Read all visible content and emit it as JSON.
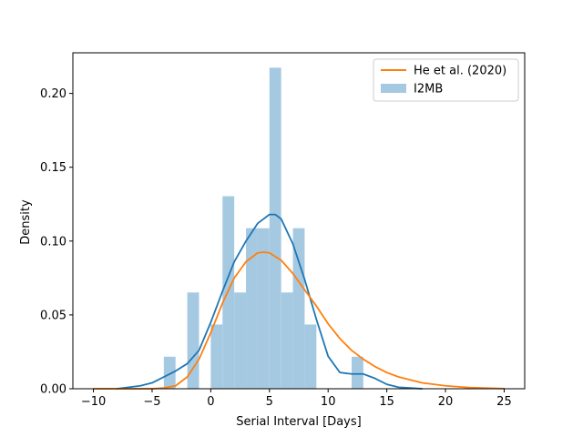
{
  "chart_data": {
    "type": "bar",
    "title": "",
    "xlabel": "Serial Interval [Days]",
    "ylabel": "Density",
    "xlim": [
      -11.75,
      26.75
    ],
    "ylim": [
      0,
      0.2275
    ],
    "grid": false,
    "legend_position": "top-right",
    "x_ticks": [
      -10,
      -5,
      0,
      5,
      10,
      15,
      20,
      25
    ],
    "x_tick_labels": [
      "−10",
      "−5",
      "0",
      "5",
      "10",
      "15",
      "20",
      "25"
    ],
    "y_ticks": [
      0,
      0.05,
      0.1,
      0.15,
      0.2
    ],
    "y_tick_labels": [
      "0.00",
      "0.05",
      "0.10",
      "0.15",
      "0.20"
    ],
    "histogram": {
      "name": "I2MB",
      "color": "#a6c9e2",
      "bins": [
        {
          "x0": -4.0,
          "x1": -3.0,
          "density": 0.0217
        },
        {
          "x0": -2.0,
          "x1": -1.0,
          "density": 0.0652
        },
        {
          "x0": 0.0,
          "x1": 1.0,
          "density": 0.0435
        },
        {
          "x0": 1.0,
          "x1": 2.0,
          "density": 0.1304
        },
        {
          "x0": 2.0,
          "x1": 3.0,
          "density": 0.0652
        },
        {
          "x0": 3.0,
          "x1": 4.0,
          "density": 0.1087
        },
        {
          "x0": 4.0,
          "x1": 5.0,
          "density": 0.1087
        },
        {
          "x0": 5.0,
          "x1": 6.0,
          "density": 0.2174
        },
        {
          "x0": 6.0,
          "x1": 7.0,
          "density": 0.0652
        },
        {
          "x0": 7.0,
          "x1": 8.0,
          "density": 0.1087
        },
        {
          "x0": 8.0,
          "x1": 9.0,
          "density": 0.0435
        },
        {
          "x0": 12.0,
          "x1": 13.0,
          "density": 0.0217
        }
      ]
    },
    "series": [
      {
        "name": "",
        "kind": "kde",
        "color": "#1f77b4",
        "x": [
          -8,
          -6,
          -5,
          -4,
          -3,
          -2,
          -1,
          0,
          1,
          2,
          3,
          4,
          5,
          5.5,
          6,
          7,
          8,
          9,
          10,
          11,
          12,
          13,
          14,
          15,
          16,
          17,
          18
        ],
        "y": [
          0.0,
          0.002,
          0.004,
          0.008,
          0.012,
          0.017,
          0.026,
          0.045,
          0.066,
          0.086,
          0.1,
          0.112,
          0.118,
          0.118,
          0.115,
          0.098,
          0.074,
          0.047,
          0.022,
          0.011,
          0.01,
          0.01,
          0.007,
          0.003,
          0.001,
          0.0005,
          0.0
        ]
      },
      {
        "name": "He et al. (2020)",
        "kind": "curve",
        "color": "#ff7f0e",
        "x": [
          -10,
          -8,
          -6,
          -5,
          -4,
          -3,
          -2,
          -1,
          0,
          1,
          2,
          3,
          4,
          4.5,
          5,
          6,
          7,
          8,
          9,
          10,
          11,
          12,
          13,
          14,
          15,
          16,
          17,
          18,
          20,
          22,
          25
        ],
        "y": [
          0.0,
          0.0,
          0.0,
          0.0,
          0.0005,
          0.002,
          0.008,
          0.02,
          0.038,
          0.058,
          0.075,
          0.086,
          0.092,
          0.0925,
          0.092,
          0.087,
          0.078,
          0.067,
          0.056,
          0.044,
          0.034,
          0.026,
          0.02,
          0.015,
          0.011,
          0.008,
          0.006,
          0.004,
          0.002,
          0.0008,
          0.0001
        ]
      }
    ],
    "legend": [
      {
        "label": "He et al. (2020)",
        "kind": "line",
        "color": "#ff7f0e"
      },
      {
        "label": "I2MB",
        "kind": "patch",
        "color": "#a6c9e2"
      }
    ]
  }
}
